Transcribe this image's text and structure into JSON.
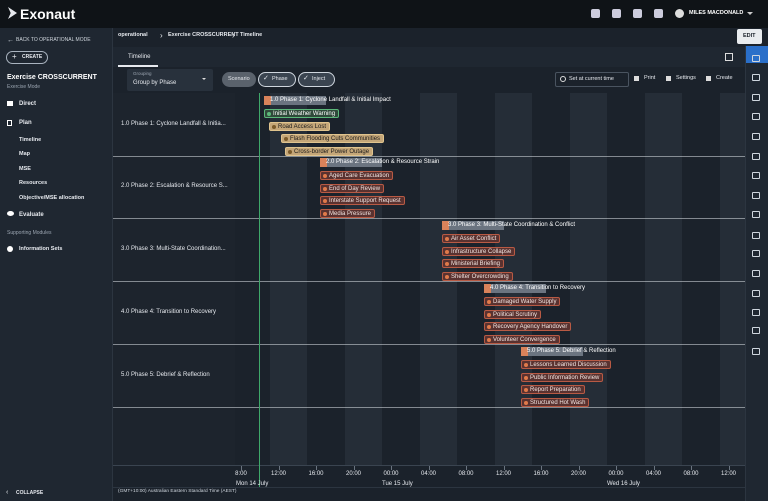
{
  "header": {
    "brand": "Exonaut",
    "user": "MILES MACDONALD"
  },
  "sidebar": {
    "back": "BACK TO OPERATIONAL MODE",
    "create": "CREATE",
    "exercise_title": "Exercise CROSSCURRENT",
    "exercise_mode": "Exercise Mode",
    "nav": [
      "Direct",
      "Plan"
    ],
    "sub": [
      "Timeline",
      "Map",
      "MSE",
      "Resources",
      "Objective/MSE allocation"
    ],
    "evaluate": "Evaluate",
    "supporting": "Supporting Modules",
    "information_sets": "Information Sets",
    "collapse": "COLLAPSE"
  },
  "breadcrumb": [
    "operational",
    "Exercise CROSSCURRENT",
    "Timeline"
  ],
  "edit": "EDIT",
  "tab": "Timeline",
  "toolbar": {
    "grouping_label": "Grouping",
    "grouping_value": "Group by Phase",
    "chips": [
      "Scenario",
      "Phase",
      "Inject"
    ],
    "actions": [
      "Set at current time",
      "Print",
      "Settings",
      "Create"
    ]
  },
  "timeline": {
    "phases": [
      {
        "row_label": "1.0 Phase 1: Cyclone Landfall & Initia...",
        "bar_label": "1.0 Phase 1: Cyclone Landfall & Initial Impact",
        "items": [
          "Initial Weather Warning",
          "Road Access Lost",
          "Flash Flooding Cuts Communities",
          "Cross-border Power Outage"
        ]
      },
      {
        "row_label": "2.0 Phase 2: Escalation & Resource S...",
        "bar_label": "2.0 Phase 2: Escalation & Resource Strain",
        "items": [
          "Aged Care Evacuation",
          "End of Day Review",
          "Interstate Support Request",
          "Media Pressure"
        ]
      },
      {
        "row_label": "3.0 Phase 3: Multi-State Coordination...",
        "bar_label": "3.0 Phase 3: Multi-State Coordination & Conflict",
        "items": [
          "Air Asset Conflict",
          "Infrastructure Collapse",
          "Ministerial Briefing",
          "Shelter Overcrowding"
        ]
      },
      {
        "row_label": "4.0 Phase 4: Transition to Recovery",
        "bar_label": "4.0 Phase 4: Transition to Recovery",
        "items": [
          "Damaged Water Supply",
          "Political Scrutiny",
          "Recovery Agency Handover",
          "Volunteer Convergence"
        ]
      },
      {
        "row_label": "5.0 Phase 5: Debrief & Reflection",
        "bar_label": "5.0 Phase 5: Debrief & Reflection",
        "items": [
          "Lessons Learned Discussion",
          "Public Information Review",
          "Report Preparation",
          "Structured Hot Wash"
        ]
      }
    ],
    "ticks": [
      "8:00",
      "12:00",
      "16:00",
      "20:00",
      "00:00",
      "04:00",
      "08:00",
      "12:00",
      "16:00",
      "20:00",
      "00:00",
      "04:00",
      "08:00",
      "12:00"
    ],
    "days": [
      "Mon 14 July",
      "Tue 15 July",
      "Wed 16 July"
    ],
    "timezone": "(GMT+10:00) Australian Eastern Standard Time (AEST)"
  }
}
